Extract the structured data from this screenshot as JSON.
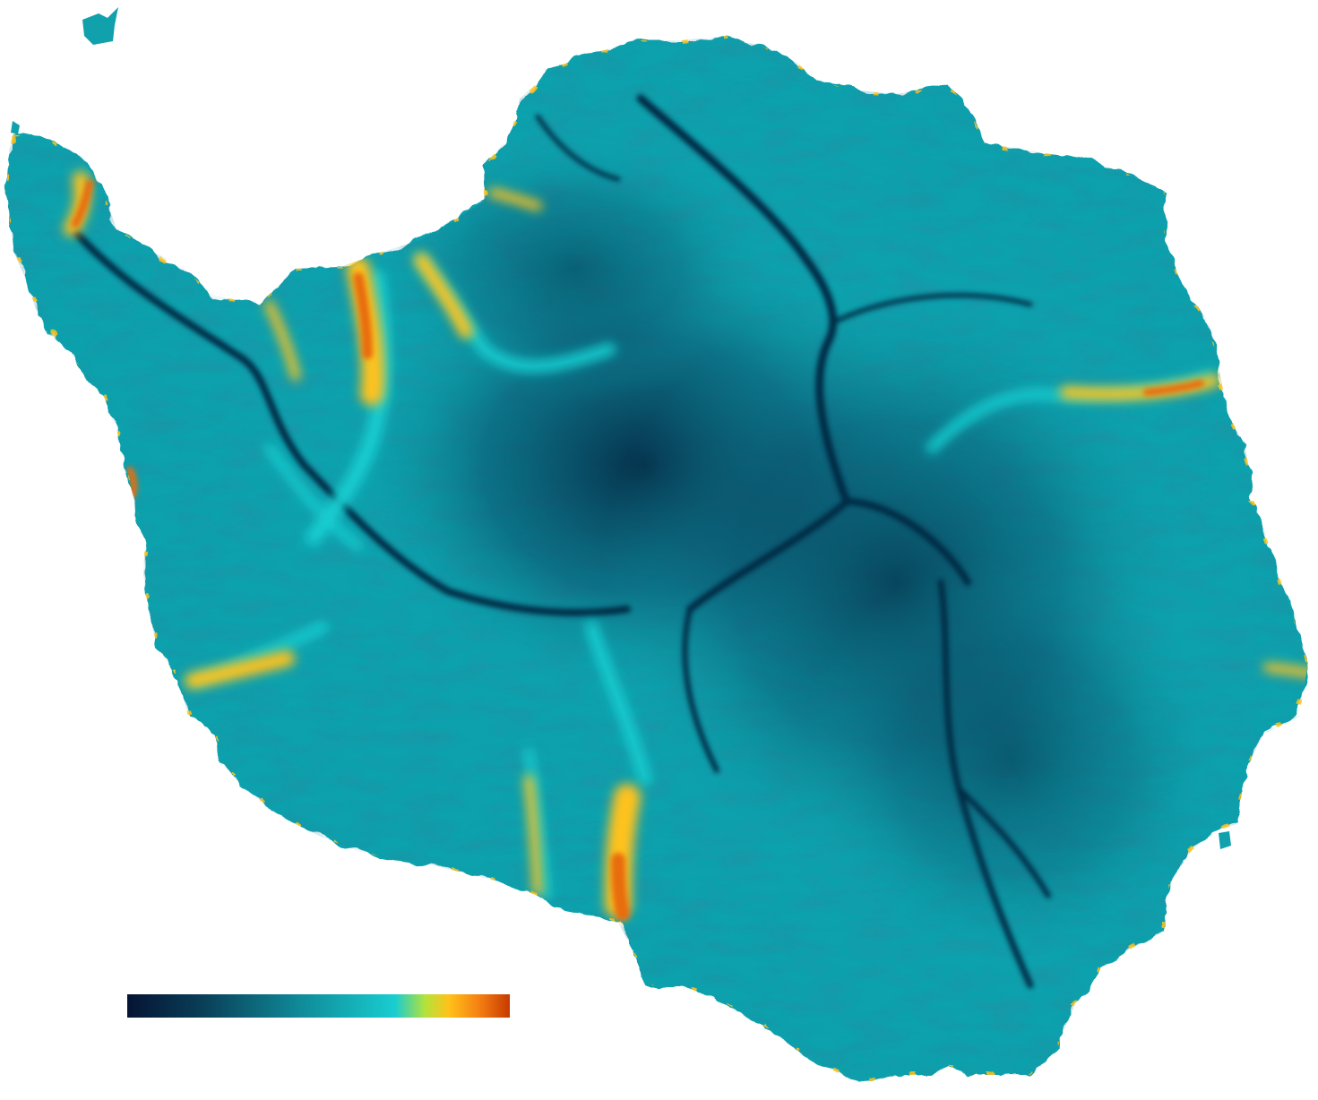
{
  "map": {
    "subject": "antarctica-ice-velocity",
    "colormap": {
      "stops": [
        {
          "offset": 0.0,
          "color": "#051433"
        },
        {
          "offset": 0.2,
          "color": "#0a3f58"
        },
        {
          "offset": 0.45,
          "color": "#0f8a98"
        },
        {
          "offset": 0.7,
          "color": "#19cdd0"
        },
        {
          "offset": 0.78,
          "color": "#b6e23a"
        },
        {
          "offset": 0.84,
          "color": "#ffc21a"
        },
        {
          "offset": 0.92,
          "color": "#f57f12"
        },
        {
          "offset": 1.0,
          "color": "#c63a00"
        }
      ]
    },
    "colors": {
      "background": "#ffffff",
      "ice_base": "#10a1ad",
      "ice_light": "#19c7cc",
      "divide_dark": "#063b52",
      "fast_flow": "#f4a21a",
      "fast_flow_hot": "#d44a00"
    }
  }
}
